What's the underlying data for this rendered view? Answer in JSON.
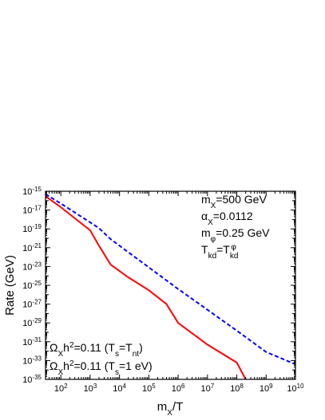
{
  "chart_data": {
    "type": "line",
    "title": "",
    "xlabel": "m_X/T",
    "ylabel": "Rate (GeV)",
    "x_scale": "log",
    "y_scale": "log",
    "xlim": [
      30,
      10000000000
    ],
    "ylim": [
      1e-35,
      1e-15
    ],
    "grid": false,
    "x_ticks": [
      {
        "value": 100,
        "base": "10",
        "exp": "2"
      },
      {
        "value": 1000,
        "base": "10",
        "exp": "3"
      },
      {
        "value": 10000,
        "base": "10",
        "exp": "4"
      },
      {
        "value": 100000,
        "base": "10",
        "exp": "5"
      },
      {
        "value": 1000000,
        "base": "10",
        "exp": "6"
      },
      {
        "value": 10000000,
        "base": "10",
        "exp": "7"
      },
      {
        "value": 100000000,
        "base": "10",
        "exp": "8"
      },
      {
        "value": 1000000000,
        "base": "10",
        "exp": "9"
      },
      {
        "value": 10000000000,
        "base": "10",
        "exp": "10"
      }
    ],
    "y_ticks": [
      {
        "value": 1e-15,
        "base": "10",
        "exp": "-15"
      },
      {
        "value": 1e-17,
        "base": "10",
        "exp": "-17"
      },
      {
        "value": 1e-19,
        "base": "10",
        "exp": "-19"
      },
      {
        "value": 1e-21,
        "base": "10",
        "exp": "-21"
      },
      {
        "value": 1e-23,
        "base": "10",
        "exp": "-23"
      },
      {
        "value": 1e-25,
        "base": "10",
        "exp": "-25"
      },
      {
        "value": 1e-27,
        "base": "10",
        "exp": "-27"
      },
      {
        "value": 1e-29,
        "base": "10",
        "exp": "-29"
      },
      {
        "value": 1e-31,
        "base": "10",
        "exp": "-31"
      },
      {
        "value": 1e-33,
        "base": "10",
        "exp": "-33"
      },
      {
        "value": 1e-35,
        "base": "10",
        "exp": "-35"
      }
    ],
    "series": [
      {
        "name": "Ω_X h² = 0.11 (T_s = T_nt)",
        "color": "#ff0000",
        "style": "solid",
        "x": [
          30,
          100,
          1000,
          2000,
          5000,
          20000,
          100000,
          400000,
          1000000,
          10000000,
          100000000,
          200000000
        ],
        "y": [
          3e-16,
          2e-17,
          7e-20,
          1.6e-21,
          1.6e-23,
          7e-25,
          3e-26,
          1e-27,
          1e-29,
          5e-32,
          6e-34,
          1e-35
        ]
      },
      {
        "name": "Ω_X h² = 0.11 (T_s = 1 eV)",
        "color": "#0000ff",
        "style": "dashed",
        "x": [
          30,
          100,
          1000,
          2000,
          5000,
          100000,
          1000000,
          10000000,
          100000000,
          1000000000,
          10000000000
        ],
        "y": [
          5e-16,
          5e-17,
          5e-19,
          1.2e-19,
          8e-21,
          8e-24,
          4e-26,
          2.5e-28,
          1.5e-30,
          8e-33,
          4e-34
        ]
      }
    ],
    "params": [
      {
        "main": "m",
        "sub": "X",
        "rest": "=500 GeV"
      },
      {
        "main": "α",
        "sub": "X",
        "rest": "=0.0112"
      },
      {
        "main": "m",
        "sub": "φ",
        "rest": "=0.25 GeV"
      },
      {
        "main": "T",
        "sub": "kd",
        "rest": "=T",
        "sub2": "kd",
        "sup2": "φ"
      }
    ],
    "legend": [
      {
        "a": "Ω",
        "asub": "X",
        "b": "h",
        "bsup": "2",
        "c": "=0.11 (T",
        "csub": "s",
        "d": "=T",
        "dsub": "nt",
        "e": ")"
      },
      {
        "a": "Ω",
        "asub": "X",
        "b": "h",
        "bsup": "2",
        "c": "=0.11 (T",
        "csub": "s",
        "d": "=1 eV)",
        "dsub": "",
        "e": ""
      }
    ],
    "legend_position": "bottom-left",
    "params_position": "top-right",
    "axis_title_x": {
      "main": "m",
      "sub": "X",
      "rest": "/T"
    }
  }
}
